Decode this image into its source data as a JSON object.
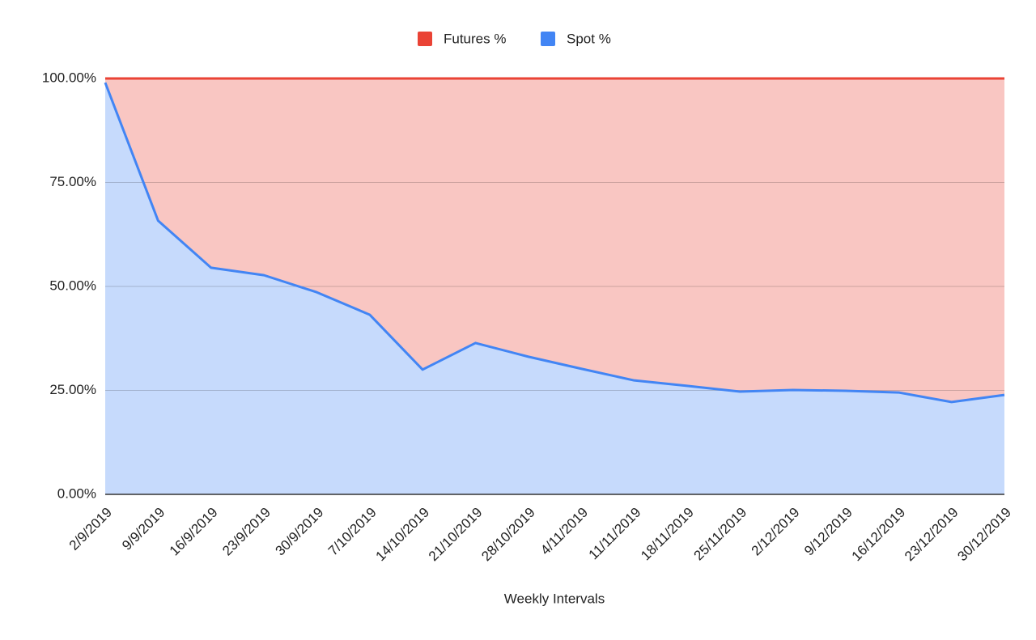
{
  "chart_data": {
    "type": "stacked_area",
    "x_label": "Weekly Intervals",
    "categories": [
      "2/9/2019",
      "9/9/2019",
      "16/9/2019",
      "23/9/2019",
      "30/9/2019",
      "7/10/2019",
      "14/10/2019",
      "21/10/2019",
      "28/10/2019",
      "4/11/2019",
      "11/11/2019",
      "18/11/2019",
      "25/11/2019",
      "2/12/2019",
      "9/12/2019",
      "16/12/2019",
      "23/12/2019",
      "30/12/2019"
    ],
    "series": [
      {
        "name": "Futures %",
        "color": "#ea4335",
        "values": [
          1.0,
          34.2,
          45.5,
          47.3,
          51.4,
          56.8,
          70.0,
          63.6,
          66.9,
          69.8,
          72.6,
          73.9,
          75.3,
          74.9,
          75.1,
          75.5,
          77.8,
          76.1
        ]
      },
      {
        "name": "Spot %",
        "color": "#4285f4",
        "values": [
          99.0,
          65.8,
          54.5,
          52.7,
          48.6,
          43.2,
          30.0,
          36.4,
          33.1,
          30.2,
          27.4,
          26.1,
          24.7,
          25.1,
          24.9,
          24.5,
          22.2,
          23.9
        ]
      }
    ],
    "ylim": [
      0,
      100
    ],
    "yticks": [
      {
        "value": 0,
        "label": "0.00%"
      },
      {
        "value": 25,
        "label": "25.00%"
      },
      {
        "value": 50,
        "label": "50.00%"
      },
      {
        "value": 75,
        "label": "75.00%"
      },
      {
        "value": 100,
        "label": "100.00%"
      }
    ],
    "grid": true,
    "legend": "top"
  }
}
